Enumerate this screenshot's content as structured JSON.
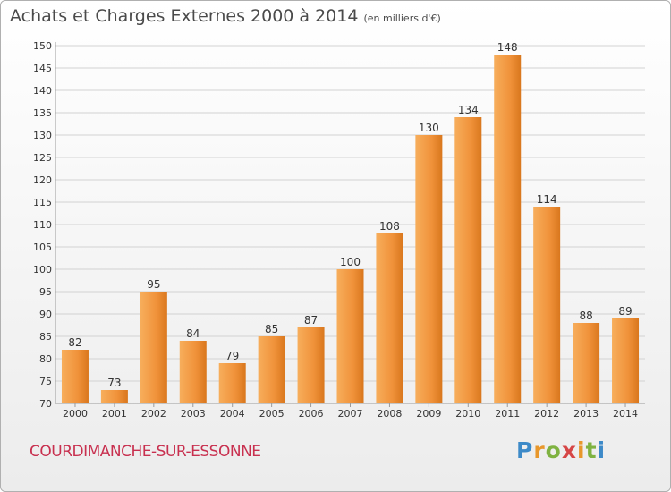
{
  "title": "Achats et Charges Externes 2000 à 2014",
  "unit_note": "(en milliers d'€)",
  "commune": "COURDIMANCHE-SUR-ESSONNE",
  "logo": {
    "text": "Proxiti"
  },
  "colors": {
    "bar": "#f0923a",
    "bar_light": "#f7ae5c",
    "bar_dark": "#d9771d",
    "title": "#4a4a4a",
    "commune": "#c8304f",
    "grid": "#d2d2d2"
  },
  "chart_data": {
    "type": "bar",
    "title": "Achats et Charges Externes 2000 à 2014",
    "subtitle": "(en milliers d'€)",
    "categories": [
      "2000",
      "2001",
      "2002",
      "2003",
      "2004",
      "2005",
      "2006",
      "2007",
      "2008",
      "2009",
      "2010",
      "2011",
      "2012",
      "2013",
      "2014"
    ],
    "values": [
      82,
      73,
      95,
      84,
      79,
      85,
      87,
      100,
      108,
      130,
      134,
      148,
      114,
      88,
      89
    ],
    "xlabel": "",
    "ylabel": "",
    "ylim": [
      70,
      150
    ],
    "yticks": [
      70,
      75,
      80,
      85,
      90,
      95,
      100,
      105,
      110,
      115,
      120,
      125,
      130,
      135,
      140,
      145,
      150
    ],
    "grid": true,
    "data_labels": true,
    "legend": "none"
  }
}
